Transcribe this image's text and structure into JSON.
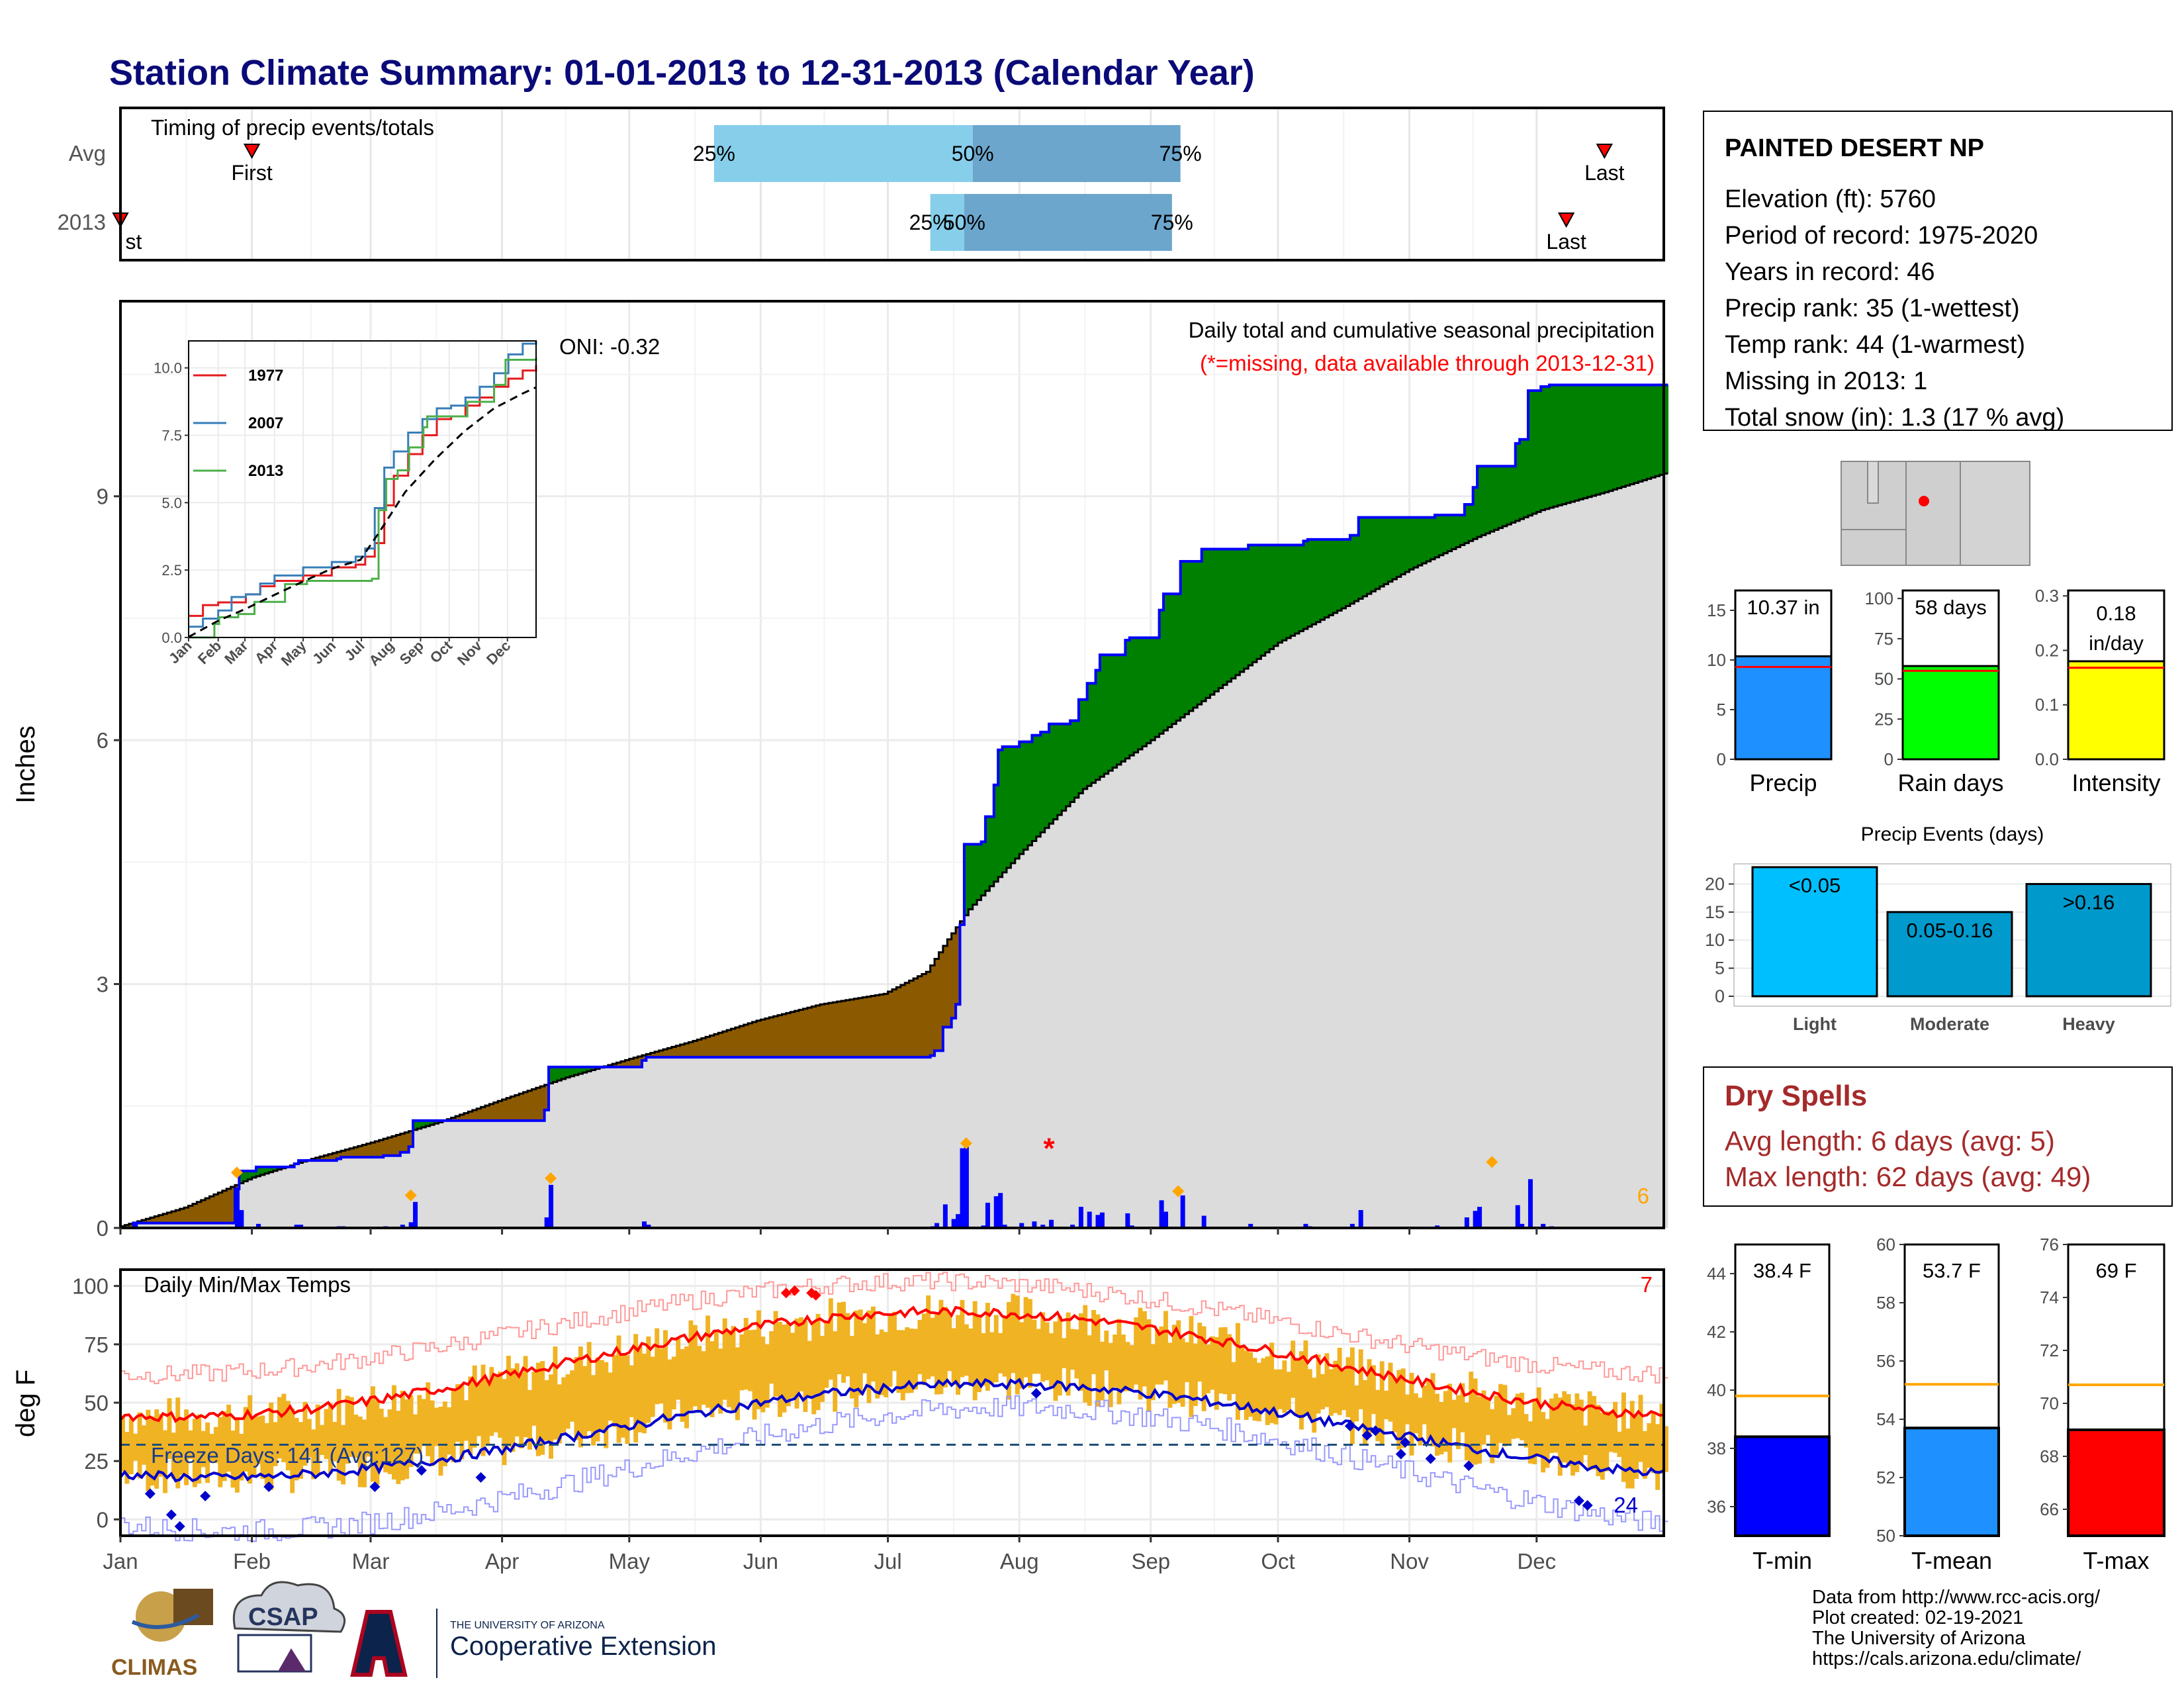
{
  "title": "Station Climate Summary: 01-01-2013 to 12-31-2013 (Calendar Year)",
  "months": [
    "Jan",
    "Feb",
    "Mar",
    "Apr",
    "May",
    "Jun",
    "Jul",
    "Aug",
    "Sep",
    "Oct",
    "Nov",
    "Dec"
  ],
  "timing": {
    "title": "Timing of precip events/totals",
    "row_avg": "Avg",
    "row_year": "2013",
    "first": "First",
    "first_year_fragment": "st",
    "last": "Last",
    "pct25": "25%",
    "pct50": "50%",
    "pct75": "75%",
    "avg_days": {
      "first": 31,
      "p25": 140,
      "p50": 201,
      "p75": 250,
      "last": 350
    },
    "year_days": {
      "first": 0,
      "p25": 191,
      "p50": 199,
      "p75": 248,
      "last": 341
    },
    "colors": {
      "light": "#87CEEB",
      "dark": "#6CA6CD",
      "marker": "#ff0000"
    }
  },
  "precip": {
    "ylabel": "Inches",
    "yticks": [
      "0",
      "3",
      "6",
      "9"
    ],
    "ymax": 11.4,
    "title": "Daily total and cumulative seasonal precipitation",
    "missing_note": "(*=missing, data available through 2013-12-31)",
    "oni": "ONI: -0.32",
    "corner_count": "6",
    "colors": {
      "above": "#008000",
      "below": "#8B5A00",
      "normal_fill": "#dcdcdc",
      "observed_line": "#0000ff",
      "normal_line": "#000000",
      "daily_bar": "#0000ff",
      "extreme_marker": "#FFA500"
    },
    "missing_marker": "*",
    "missing_day": 219,
    "missing_value": 0.99,
    "extreme_days": [
      {
        "day": 27,
        "value": 0.6
      },
      {
        "day": 68,
        "value": 0.32
      },
      {
        "day": 101,
        "value": 0.53
      },
      {
        "day": 199,
        "value": 0.96
      },
      {
        "day": 249,
        "value": 0.37
      },
      {
        "day": 323,
        "value": 0.73
      }
    ],
    "normal_curve": [
      [
        0,
        0.02
      ],
      [
        15,
        0.25
      ],
      [
        31,
        0.62
      ],
      [
        45,
        0.85
      ],
      [
        59,
        1.05
      ],
      [
        75,
        1.3
      ],
      [
        90,
        1.58
      ],
      [
        105,
        1.85
      ],
      [
        120,
        2.08
      ],
      [
        135,
        2.3
      ],
      [
        150,
        2.55
      ],
      [
        165,
        2.75
      ],
      [
        180,
        2.88
      ],
      [
        190,
        3.15
      ],
      [
        195,
        3.55
      ],
      [
        200,
        3.92
      ],
      [
        212,
        4.6
      ],
      [
        227,
        5.4
      ],
      [
        243,
        6.0
      ],
      [
        258,
        6.6
      ],
      [
        273,
        7.2
      ],
      [
        289,
        7.65
      ],
      [
        304,
        8.1
      ],
      [
        320,
        8.5
      ],
      [
        335,
        8.83
      ],
      [
        350,
        9.05
      ],
      [
        364,
        9.28
      ]
    ],
    "observed_steps": [
      [
        0,
        0
      ],
      [
        3,
        0.06
      ],
      [
        27,
        0.48
      ],
      [
        28,
        0.7
      ],
      [
        32,
        0.75
      ],
      [
        41,
        0.79
      ],
      [
        42,
        0.83
      ],
      [
        51,
        0.85
      ],
      [
        52,
        0.87
      ],
      [
        62,
        0.89
      ],
      [
        66,
        0.93
      ],
      [
        68,
        1.0
      ],
      [
        69,
        1.32
      ],
      [
        100,
        1.45
      ],
      [
        101,
        1.98
      ],
      [
        123,
        2.06
      ],
      [
        124,
        2.1
      ],
      [
        191,
        2.12
      ],
      [
        192,
        2.18
      ],
      [
        194,
        2.47
      ],
      [
        196,
        2.58
      ],
      [
        197,
        2.75
      ],
      [
        198,
        3.73
      ],
      [
        199,
        4.72
      ],
      [
        203,
        4.75
      ],
      [
        204,
        5.06
      ],
      [
        206,
        5.45
      ],
      [
        207,
        5.88
      ],
      [
        208,
        5.92
      ],
      [
        212,
        5.98
      ],
      [
        215,
        6.06
      ],
      [
        217,
        6.1
      ],
      [
        219,
        6.2
      ],
      [
        224,
        6.24
      ],
      [
        225,
        6.24
      ],
      [
        226,
        6.5
      ],
      [
        228,
        6.7
      ],
      [
        230,
        6.86
      ],
      [
        231,
        7.05
      ],
      [
        237,
        7.23
      ],
      [
        238,
        7.26
      ],
      [
        245,
        7.6
      ],
      [
        246,
        7.8
      ],
      [
        250,
        8.2
      ],
      [
        255,
        8.35
      ],
      [
        266,
        8.4
      ],
      [
        279,
        8.45
      ],
      [
        280,
        8.47
      ],
      [
        290,
        8.52
      ],
      [
        292,
        8.74
      ],
      [
        310,
        8.77
      ],
      [
        317,
        8.9
      ],
      [
        319,
        9.11
      ],
      [
        320,
        9.37
      ],
      [
        329,
        9.65
      ],
      [
        330,
        9.7
      ],
      [
        332,
        10.3
      ],
      [
        335,
        10.35
      ],
      [
        336,
        10.35
      ],
      [
        337,
        10.37
      ],
      [
        345,
        10.37
      ],
      [
        364,
        10.37
      ]
    ],
    "daily_bars": [
      [
        3,
        0.06
      ],
      [
        27,
        0.48
      ],
      [
        28,
        0.22
      ],
      [
        32,
        0.05
      ],
      [
        41,
        0.04
      ],
      [
        42,
        0.04
      ],
      [
        51,
        0.02
      ],
      [
        52,
        0.02
      ],
      [
        62,
        0.02
      ],
      [
        66,
        0.04
      ],
      [
        68,
        0.07
      ],
      [
        69,
        0.32
      ],
      [
        100,
        0.13
      ],
      [
        101,
        0.53
      ],
      [
        123,
        0.08
      ],
      [
        124,
        0.04
      ],
      [
        191,
        0.02
      ],
      [
        192,
        0.06
      ],
      [
        194,
        0.29
      ],
      [
        196,
        0.11
      ],
      [
        197,
        0.17
      ],
      [
        198,
        0.98
      ],
      [
        199,
        1.0
      ],
      [
        203,
        0.03
      ],
      [
        204,
        0.31
      ],
      [
        206,
        0.39
      ],
      [
        207,
        0.43
      ],
      [
        208,
        0.04
      ],
      [
        212,
        0.06
      ],
      [
        215,
        0.08
      ],
      [
        217,
        0.04
      ],
      [
        219,
        0.1
      ],
      [
        224,
        0.04
      ],
      [
        226,
        0.26
      ],
      [
        228,
        0.2
      ],
      [
        230,
        0.16
      ],
      [
        231,
        0.19
      ],
      [
        237,
        0.18
      ],
      [
        238,
        0.03
      ],
      [
        245,
        0.34
      ],
      [
        246,
        0.2
      ],
      [
        250,
        0.4
      ],
      [
        255,
        0.15
      ],
      [
        266,
        0.05
      ],
      [
        279,
        0.05
      ],
      [
        280,
        0.02
      ],
      [
        290,
        0.05
      ],
      [
        292,
        0.22
      ],
      [
        310,
        0.03
      ],
      [
        317,
        0.13
      ],
      [
        319,
        0.21
      ],
      [
        320,
        0.26
      ],
      [
        329,
        0.28
      ],
      [
        330,
        0.05
      ],
      [
        332,
        0.6
      ],
      [
        335,
        0.05
      ],
      [
        337,
        0.02
      ]
    ]
  },
  "inset": {
    "yticks": [
      "0.0",
      "2.5",
      "5.0",
      "7.5",
      "10.0"
    ],
    "xticks": [
      "Jan",
      "Feb",
      "Mar",
      "Apr",
      "May",
      "Jun",
      "Jul",
      "Aug",
      "Sep",
      "Oct",
      "Nov",
      "Dec"
    ],
    "ymax": 11.0,
    "legend": [
      "1977",
      "2007",
      "2013"
    ],
    "colors": {
      "1977": "#e41a1c",
      "2007": "#377eb8",
      "2013": "#4daf4a",
      "avg": "#000000"
    },
    "series": {
      "1977": [
        [
          0,
          0.8
        ],
        [
          15,
          1.2
        ],
        [
          31,
          1.3
        ],
        [
          60,
          1.6
        ],
        [
          75,
          1.9
        ],
        [
          90,
          2.1
        ],
        [
          120,
          2.3
        ],
        [
          150,
          2.6
        ],
        [
          175,
          2.7
        ],
        [
          185,
          3.0
        ],
        [
          195,
          3.5
        ],
        [
          205,
          4.9
        ],
        [
          215,
          6.0
        ],
        [
          230,
          6.8
        ],
        [
          245,
          7.5
        ],
        [
          260,
          8.1
        ],
        [
          275,
          8.2
        ],
        [
          290,
          8.6
        ],
        [
          305,
          8.9
        ],
        [
          320,
          9.3
        ],
        [
          335,
          9.6
        ],
        [
          350,
          9.9
        ],
        [
          364,
          10.1
        ]
      ],
      "2007": [
        [
          0,
          0.4
        ],
        [
          15,
          0.7
        ],
        [
          31,
          1.0
        ],
        [
          45,
          1.5
        ],
        [
          60,
          1.6
        ],
        [
          75,
          2.0
        ],
        [
          90,
          2.3
        ],
        [
          120,
          2.6
        ],
        [
          150,
          2.8
        ],
        [
          175,
          3.0
        ],
        [
          185,
          3.3
        ],
        [
          195,
          4.8
        ],
        [
          205,
          6.3
        ],
        [
          215,
          6.9
        ],
        [
          230,
          7.6
        ],
        [
          245,
          8.1
        ],
        [
          260,
          8.5
        ],
        [
          275,
          8.6
        ],
        [
          290,
          8.9
        ],
        [
          305,
          9.3
        ],
        [
          320,
          9.8
        ],
        [
          335,
          10.5
        ],
        [
          350,
          10.9
        ],
        [
          364,
          11.0
        ]
      ],
      "2013": [
        [
          0,
          0.0
        ],
        [
          27,
          0.5
        ],
        [
          32,
          0.75
        ],
        [
          52,
          0.87
        ],
        [
          69,
          1.32
        ],
        [
          101,
          1.98
        ],
        [
          124,
          2.1
        ],
        [
          192,
          2.18
        ],
        [
          199,
          4.72
        ],
        [
          207,
          5.88
        ],
        [
          219,
          6.2
        ],
        [
          231,
          7.05
        ],
        [
          246,
          7.8
        ],
        [
          250,
          8.2
        ],
        [
          292,
          8.74
        ],
        [
          320,
          9.37
        ],
        [
          332,
          10.3
        ],
        [
          364,
          10.37
        ]
      ],
      "avg": [
        [
          0,
          0.02
        ],
        [
          31,
          0.62
        ],
        [
          59,
          1.05
        ],
        [
          90,
          1.58
        ],
        [
          120,
          2.08
        ],
        [
          150,
          2.55
        ],
        [
          180,
          2.88
        ],
        [
          200,
          3.92
        ],
        [
          227,
          5.4
        ],
        [
          258,
          6.6
        ],
        [
          289,
          7.65
        ],
        [
          320,
          8.5
        ],
        [
          350,
          9.05
        ],
        [
          364,
          9.28
        ]
      ]
    }
  },
  "temps": {
    "ylabel": "deg F",
    "title": "Daily Min/Max Temps",
    "freeze_days": "Freeze Days: 141 (Avg:127)",
    "corner_top": "7",
    "corner_bottom": "24",
    "yticks": [
      "0",
      "25",
      "50",
      "75",
      "100"
    ],
    "ymin": -7,
    "ymax": 107,
    "freezing": 32,
    "colors": {
      "bar": "#F0B323",
      "max_line": "#ff0000",
      "min_line": "#0000cc",
      "record_max": "#ff9999",
      "record_min": "#9999ff",
      "freeze_line": "#1f4e79",
      "max_dot": "#ff0000",
      "min_dot": "#0000cc"
    }
  },
  "station": {
    "name": "PAINTED DESERT NP",
    "lines": [
      "Elevation (ft): 5760",
      "Period of record: 1975-2020",
      "Years in record: 46",
      "Precip rank: 35 (1-wettest)",
      "Temp rank: 44 (1-warmest)",
      "Missing in 2013: 1",
      "Total snow (in): 1.3 (17 % avg)"
    ]
  },
  "mini_bars": [
    {
      "label": "Precip",
      "value_label": "10.37 in",
      "value": 10.37,
      "avg": 9.3,
      "ymax": 17,
      "yticks": [
        "0",
        "5",
        "10",
        "15"
      ],
      "tickvals": [
        0,
        5,
        10,
        15
      ],
      "color": "#1E90FF"
    },
    {
      "label": "Rain days",
      "value_label": "58 days",
      "value": 58,
      "avg": 55,
      "ymax": 105,
      "yticks": [
        "0",
        "25",
        "50",
        "75",
        "100"
      ],
      "tickvals": [
        0,
        25,
        50,
        75,
        100
      ],
      "color": "#00FF00"
    },
    {
      "label": "Intensity",
      "value_label": "0.18 in/day",
      "value_line1": "0.18",
      "value_line2": "in/day",
      "value": 0.18,
      "avg": 0.168,
      "ymax": 0.31,
      "yticks": [
        "0.0",
        "0.1",
        "0.2",
        "0.3"
      ],
      "tickvals": [
        0,
        0.1,
        0.2,
        0.3
      ],
      "color": "#FFFF00"
    }
  ],
  "precip_events": {
    "title": "Precip Events (days)",
    "ymax": 23,
    "yticks": [
      "0",
      "5",
      "10",
      "15",
      "20"
    ],
    "categories": [
      "Light",
      "Moderate",
      "Heavy"
    ],
    "bar_labels": [
      "<0.05",
      "0.05-0.16",
      ">0.16"
    ],
    "values": [
      23,
      15,
      20
    ],
    "colors": [
      "#00BFFF",
      "#009ACD",
      "#0099CC"
    ]
  },
  "dry_spells": {
    "title": "Dry Spells",
    "avg_length": "Avg length: 6 days (avg: 5)",
    "max_length": "Max length: 62 days (avg: 49)",
    "color": "#A52A2A"
  },
  "temp_bars": [
    {
      "label": "T-min",
      "value_label": "38.4 F",
      "value": 38.4,
      "avg": 39.8,
      "ymin": 35,
      "ymax": 45,
      "yticks": [
        "36",
        "38",
        "40",
        "42",
        "44"
      ],
      "tickvals": [
        36,
        38,
        40,
        42,
        44
      ],
      "color": "#0000FF"
    },
    {
      "label": "T-mean",
      "value_label": "53.7 F",
      "value": 53.7,
      "avg": 55.2,
      "ymin": 50,
      "ymax": 60,
      "yticks": [
        "50",
        "52",
        "54",
        "56",
        "58",
        "60"
      ],
      "tickvals": [
        50,
        52,
        54,
        56,
        58,
        60
      ],
      "color": "#1E90FF"
    },
    {
      "label": "T-max",
      "value_label": "69 F",
      "value": 69,
      "avg": 70.7,
      "ymin": 65,
      "ymax": 76,
      "yticks": [
        "66",
        "68",
        "70",
        "72",
        "74",
        "76"
      ],
      "tickvals": [
        66,
        68,
        70,
        72,
        74,
        76
      ],
      "color": "#FF0000"
    }
  ],
  "footer": {
    "lines": [
      "Data from http://www.rcc-acis.org/",
      "Plot created: 02-19-2021",
      "The University of Arizona",
      "https://cals.arizona.edu/climate/"
    ],
    "climas": "CLIMAS",
    "csap": "CSAP",
    "uofa_small": "THE UNIVERSITY OF ARIZONA",
    "coop": "Cooperative Extension"
  }
}
